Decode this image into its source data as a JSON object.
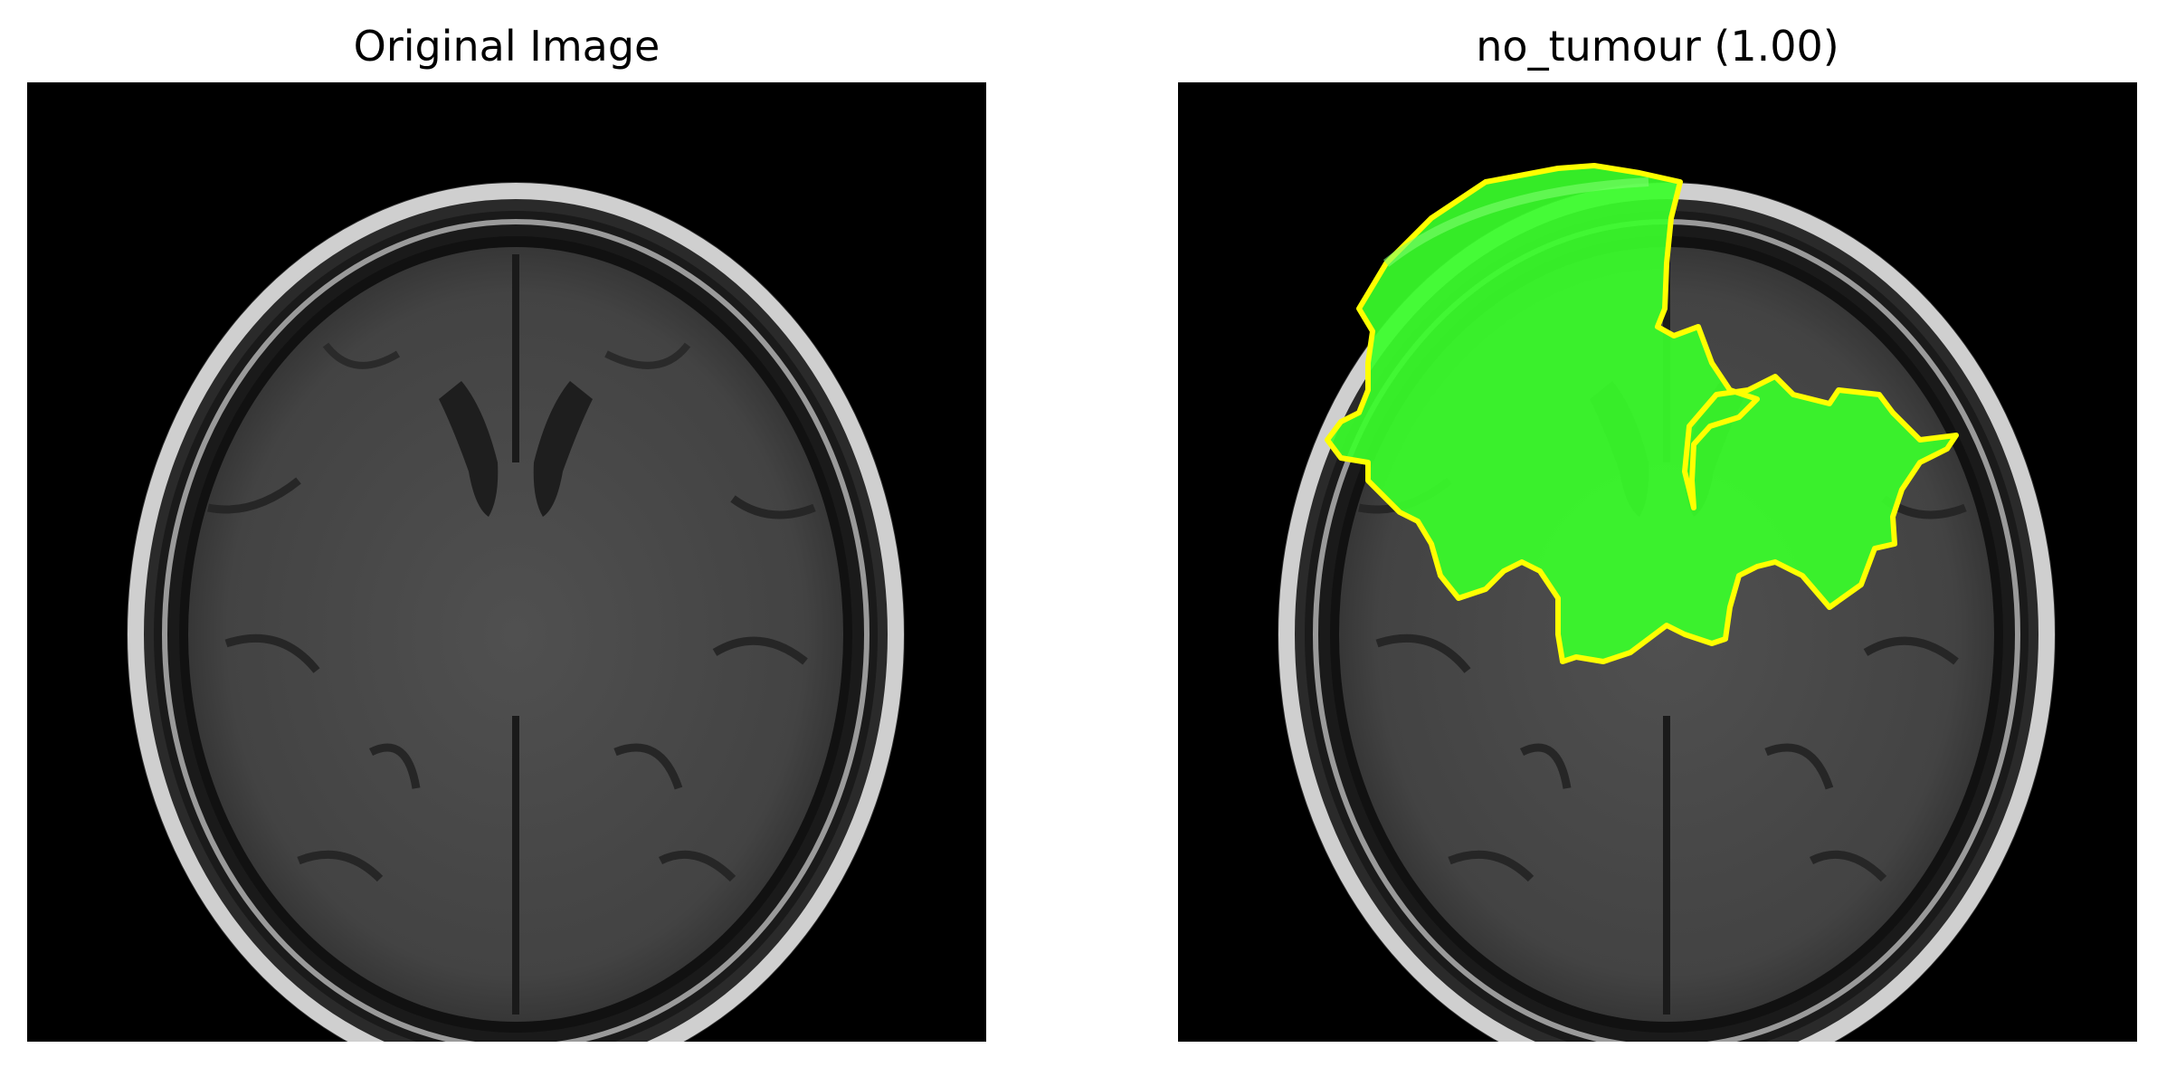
{
  "figure": {
    "left_title": "Original Image",
    "right_title": "no_tumour (1.00)",
    "left_image": "axial brain MRI slice (FLAIR), grayscale",
    "right_image": "same MRI slice with green explanation region outlined in yellow"
  },
  "colors": {
    "background": "#000000",
    "overlay_fill": "#39ff2a",
    "overlay_outline": "#ffff00",
    "skull": "#d8d8d8",
    "brain": "#4a4a4a"
  }
}
